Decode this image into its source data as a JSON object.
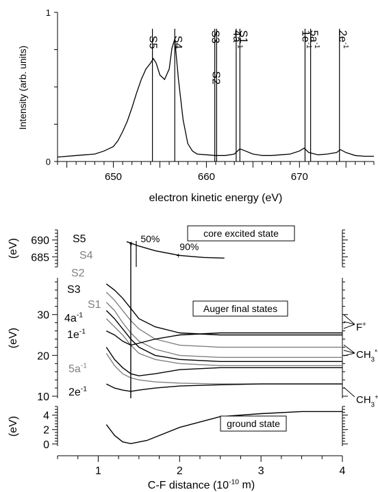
{
  "chart_data": [
    {
      "type": "line",
      "xlabel": "electron kinetic energy (eV)",
      "ylabel": "Intensity (arb. units)",
      "xlim": [
        644,
        678
      ],
      "ylim": [
        0,
        1
      ],
      "x_ticks": [
        650,
        660,
        670
      ],
      "y_ticks": [
        0,
        1
      ],
      "grid": false,
      "series": [
        {
          "x": [
            644.0,
            646.0,
            648.0,
            649.0,
            650.0,
            650.5,
            651.0,
            651.5,
            652.0,
            652.5,
            653.0,
            653.5,
            654.0,
            654.3,
            654.6,
            655.0,
            655.5,
            656.0,
            656.3,
            656.6,
            657.0,
            657.5,
            658.0,
            658.5,
            659.0,
            660.0,
            661.0,
            662.0,
            663.0,
            663.6,
            664.2,
            665.0,
            666.0,
            667.0,
            668.0,
            669.0,
            670.0,
            670.5,
            671.0,
            672.0,
            673.0,
            674.0,
            674.4,
            675.0,
            676.0,
            677.0,
            678.0
          ],
          "y": [
            0.03,
            0.04,
            0.05,
            0.07,
            0.1,
            0.14,
            0.2,
            0.27,
            0.36,
            0.46,
            0.55,
            0.62,
            0.66,
            0.69,
            0.66,
            0.58,
            0.55,
            0.62,
            0.76,
            0.82,
            0.55,
            0.28,
            0.12,
            0.07,
            0.05,
            0.045,
            0.04,
            0.04,
            0.05,
            0.085,
            0.07,
            0.05,
            0.04,
            0.04,
            0.045,
            0.05,
            0.07,
            0.09,
            0.06,
            0.045,
            0.05,
            0.06,
            0.08,
            0.06,
            0.04,
            0.035,
            0.035
          ]
        }
      ],
      "markers": [
        {
          "label": "S5",
          "x": 654.2
        },
        {
          "label": "S4",
          "x": 656.6
        },
        {
          "label": "S3",
          "x": 660.9
        },
        {
          "label": "S2",
          "x": 661.1
        },
        {
          "label": "4a",
          "sup": "-1",
          "x": 663.2
        },
        {
          "label": "S1",
          "x": 663.6
        },
        {
          "label": "1e",
          "sup": "-1",
          "x": 670.6
        },
        {
          "label": "5a",
          "sup": "-1",
          "x": 671.2
        },
        {
          "label": "2e",
          "sup": "-1",
          "x": 674.3
        }
      ]
    },
    {
      "type": "line",
      "xlabel": "C-F distance (10",
      "xlabel_sup": "-10",
      "xlabel_suffix": " m)",
      "x_ticks": [
        "1",
        "2",
        "3",
        "4"
      ],
      "xlim": [
        0.5,
        4.0
      ],
      "panels": [
        {
          "name": "core excited state",
          "ylabel": "(eV)",
          "ylim": [
            682,
            693
          ],
          "y_ticks": [
            685,
            690
          ],
          "series": [
            {
              "x": [
                1.35,
                1.5,
                1.7,
                2.0,
                2.3,
                2.55
              ],
              "y": [
                689.5,
                688.2,
                686.8,
                685.4,
                684.8,
                684.6
              ]
            }
          ],
          "annotations": [
            {
              "text": "50%",
              "x": 1.42
            },
            {
              "text": "90%",
              "x": 2.0
            }
          ]
        },
        {
          "name": "Auger final states",
          "ylabel": "(eV)",
          "ylim": [
            9.5,
            39
          ],
          "y_ticks": [
            10,
            20,
            30
          ],
          "series": [
            {
              "name": "S5",
              "color": "#000000",
              "x": [
                1.1,
                1.2,
                1.3,
                1.4,
                1.5,
                1.7,
                2.0,
                2.5,
                3.0,
                4.0
              ],
              "y": [
                37.5,
                36.0,
                34.0,
                31.5,
                29.0,
                27.0,
                25.5,
                25.0,
                25.0,
                25.0
              ]
            },
            {
              "name": "S4",
              "color": "#808080",
              "x": [
                1.1,
                1.2,
                1.3,
                1.4,
                1.5,
                1.7,
                2.0,
                2.5,
                3.0,
                4.0
              ],
              "y": [
                35.5,
                33.5,
                31.0,
                28.5,
                26.5,
                24.0,
                22.5,
                22.0,
                22.0,
                22.0
              ]
            },
            {
              "name": "S2",
              "color": "#808080",
              "x": [
                1.1,
                1.2,
                1.3,
                1.4,
                1.5,
                1.7,
                2.0,
                2.5,
                3.0,
                4.0
              ],
              "y": [
                33.0,
                31.0,
                28.0,
                25.5,
                23.5,
                21.5,
                20.0,
                19.5,
                19.5,
                19.5
              ]
            },
            {
              "name": "S3",
              "color": "#000000",
              "x": [
                1.1,
                1.2,
                1.3,
                1.4,
                1.5,
                1.7,
                2.0,
                2.5,
                3.0,
                4.0
              ],
              "y": [
                31.0,
                29.0,
                26.5,
                24.0,
                22.0,
                20.0,
                19.0,
                18.5,
                18.5,
                18.5
              ]
            },
            {
              "name": "S1",
              "color": "#808080",
              "x": [
                1.1,
                1.2,
                1.3,
                1.4,
                1.5,
                1.7,
                2.0,
                2.5,
                3.0,
                4.0
              ],
              "y": [
                29.0,
                27.0,
                25.0,
                22.5,
                20.5,
                19.0,
                18.0,
                17.5,
                17.5,
                17.5
              ]
            },
            {
              "name": "4a-1",
              "color": "#000000",
              "x": [
                1.1,
                1.2,
                1.3,
                1.4,
                1.5,
                1.7,
                2.0,
                2.5,
                3.0,
                4.0
              ],
              "y": [
                26.0,
                25.0,
                23.5,
                22.5,
                23.0,
                24.0,
                25.0,
                25.5,
                25.5,
                25.5
              ]
            },
            {
              "name": "1e-1",
              "color": "#000000",
              "x": [
                1.1,
                1.15,
                1.2,
                1.3,
                1.4,
                1.5,
                1.7,
                2.0,
                2.5,
                3.0,
                4.0
              ],
              "y": [
                22.0,
                20.5,
                19.0,
                17.0,
                15.5,
                15.0,
                15.5,
                16.5,
                17.0,
                17.0,
                17.0
              ]
            },
            {
              "name": "5a-1",
              "color": "#808080",
              "x": [
                1.1,
                1.15,
                1.2,
                1.3,
                1.4,
                1.5,
                1.7,
                2.0,
                2.5,
                3.0,
                4.0
              ],
              "y": [
                20.5,
                19.0,
                17.5,
                15.5,
                14.5,
                14.0,
                13.5,
                13.2,
                13.0,
                13.0,
                13.0
              ]
            },
            {
              "name": "2e-1",
              "color": "#000000",
              "x": [
                1.1,
                1.2,
                1.3,
                1.4,
                1.5,
                1.7,
                2.0,
                2.5,
                3.0,
                4.0
              ],
              "y": [
                13.0,
                12.0,
                11.5,
                11.2,
                11.5,
                12.0,
                12.5,
                12.8,
                13.0,
                13.0
              ]
            }
          ],
          "right_labels": [
            {
              "text": "F",
              "sup": "+"
            },
            {
              "text": "CH",
              "sub": "3",
              "sup": "*+"
            },
            {
              "text": "CH",
              "sub": "3",
              "sup": "+"
            }
          ]
        },
        {
          "name": "ground state",
          "ylabel": "(eV)",
          "ylim": [
            -0.3,
            5.2
          ],
          "y_ticks": [
            0,
            2,
            4
          ],
          "series": [
            {
              "x": [
                1.1,
                1.2,
                1.3,
                1.4,
                1.6,
                2.0,
                2.5,
                3.0,
                3.5,
                4.0
              ],
              "y": [
                2.7,
                1.2,
                0.3,
                0.05,
                0.5,
                2.3,
                3.8,
                4.2,
                4.5,
                4.5
              ]
            }
          ]
        }
      ],
      "vertical_line_x": 1.4
    }
  ]
}
